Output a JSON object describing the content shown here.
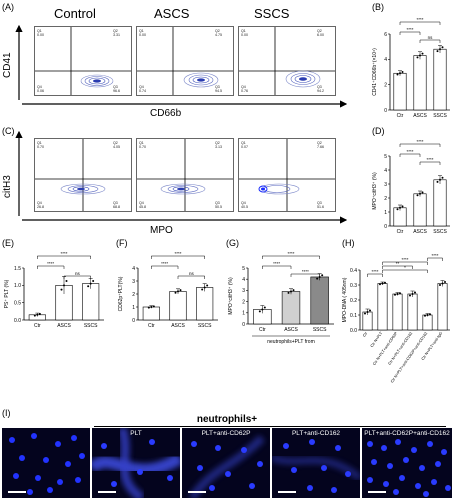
{
  "panel_labels": {
    "A": "(A)",
    "B": "(B)",
    "C": "(C)",
    "D": "(D)",
    "E": "(E)",
    "F": "(F)",
    "G": "(G)",
    "H": "(H)",
    "I": "(I)"
  },
  "flow_columns": [
    "Control",
    "ASCS",
    "SSCS"
  ],
  "row_a": {
    "y_label": "CD41",
    "x_label": "CD66b",
    "plots": [
      {
        "q1": "Q1\n0.00",
        "q2": "Q2\n3.31",
        "q3": "Q3\n96.6",
        "q4": "Q4\n0.06"
      },
      {
        "q1": "Q1\n0.00",
        "q2": "Q2\n4.75",
        "q3": "Q3\n94.5",
        "q4": "Q4\n0.74"
      },
      {
        "q1": "Q1\n0.00",
        "q2": "Q2\n6.00",
        "q3": "Q3\n94.2",
        "q4": "Q4\n0.76"
      }
    ]
  },
  "row_c": {
    "y_label": "citH3",
    "x_label": "MPO",
    "plots": [
      {
        "q1": "Q1\n0.70",
        "q2": "Q2\n4.05",
        "q3": "Q3\n68.8",
        "q4": "Q4\n26.8"
      },
      {
        "q1": "Q1\n0.70",
        "q2": "Q2\n3.13",
        "q3": "Q3\n50.5",
        "q4": "Q4\n45.8"
      },
      {
        "q1": "Q1\n0.07",
        "q2": "Q2\n7.66",
        "q3": "Q3\n51.6",
        "q4": "Q4\n40.5"
      }
    ]
  },
  "chart_data": [
    {
      "panel": "B",
      "type": "bar",
      "categories": [
        "Ctr",
        "ASCS",
        "SSCS"
      ],
      "values": [
        2.9,
        4.3,
        4.8
      ],
      "errors": [
        0.2,
        0.3,
        0.3
      ],
      "ylabel": "CD41⁺CD66b⁺(×10⁴)",
      "ylim": [
        0,
        6
      ],
      "yticks": [
        "0",
        "2",
        "4",
        "6"
      ],
      "significance": [
        "****",
        "****",
        "ns"
      ],
      "bar_colors": [
        "#ffffff",
        "#ffffff",
        "#ffffff"
      ]
    },
    {
      "panel": "D",
      "type": "bar",
      "categories": [
        "Ctr",
        "ASCS",
        "SSCS"
      ],
      "values": [
        1.3,
        2.3,
        3.3
      ],
      "errors": [
        0.2,
        0.2,
        0.3
      ],
      "ylabel": "MPO⁺citH3⁺ (%)",
      "ylim": [
        0,
        5
      ],
      "yticks": [
        "0",
        "1",
        "2",
        "3",
        "4",
        "5"
      ],
      "significance": [
        "****",
        "****",
        "****"
      ],
      "bar_colors": [
        "#ffffff",
        "#ffffff",
        "#ffffff"
      ]
    },
    {
      "panel": "E",
      "type": "bar",
      "categories": [
        "Ctr",
        "ASCS",
        "SSCS"
      ],
      "values": [
        0.15,
        1.0,
        1.05
      ],
      "errors": [
        0.05,
        0.25,
        0.15
      ],
      "ylabel": "PS⁺ PLT (%)",
      "ylim": [
        0,
        1.5
      ],
      "yticks": [
        "0.0",
        "0.5",
        "1.0",
        "1.5"
      ],
      "significance": [
        "****",
        "****",
        "ns"
      ],
      "bar_colors": [
        "#ffffff",
        "#ffffff",
        "#ffffff"
      ]
    },
    {
      "panel": "F",
      "type": "bar",
      "categories": [
        "Ctr",
        "ASCS",
        "SSCS"
      ],
      "values": [
        1.0,
        2.2,
        2.5
      ],
      "errors": [
        0.1,
        0.2,
        0.3
      ],
      "ylabel": "CD62p⁺PLT(%)",
      "ylim": [
        0,
        4
      ],
      "yticks": [
        "0",
        "1",
        "2",
        "3",
        "4"
      ],
      "significance": [
        "****",
        "****",
        "ns"
      ],
      "bar_colors": [
        "#ffffff",
        "#ffffff",
        "#ffffff"
      ]
    },
    {
      "panel": "G",
      "type": "bar",
      "categories": [
        "Ctr",
        "ASCS",
        "SSCS"
      ],
      "values": [
        1.3,
        2.9,
        4.2
      ],
      "errors": [
        0.35,
        0.25,
        0.3
      ],
      "ylabel": "MPO⁺citH3⁺ (%)",
      "ylim": [
        0,
        5
      ],
      "yticks": [
        "0",
        "1",
        "2",
        "3",
        "4",
        "5"
      ],
      "significance": [
        "****",
        "****",
        "****"
      ],
      "xlabel": "neutrophils+PLT from",
      "bar_colors": [
        "#ffffff",
        "#d0d0d0",
        "#8a8a8a"
      ]
    },
    {
      "panel": "H",
      "type": "bar",
      "categories": [
        "Ctr",
        "Ctr N+PLT",
        "Ctr N+PLT+anti-CD62P",
        "Ctr N+PLT+anti-CD162",
        "Ctr N+PLT+anti-CD62P+anti-CD162",
        "Ctr N+PLT+anti-IgG"
      ],
      "values": [
        0.12,
        0.31,
        0.24,
        0.24,
        0.1,
        0.31
      ],
      "errors": [
        0.02,
        0.01,
        0.01,
        0.02,
        0.01,
        0.02
      ],
      "ylabel": "MPO-DNA ( 405nm)",
      "ylim": [
        0,
        0.4
      ],
      "yticks": [
        "0.0",
        "0.1",
        "0.2",
        "0.3",
        "0.4"
      ],
      "significance": [
        "****",
        "**",
        "*",
        "****",
        "****"
      ],
      "bar_colors": [
        "#ffffff",
        "#ffffff",
        "#ffffff",
        "#ffffff",
        "#ffffff",
        "#ffffff"
      ]
    }
  ],
  "micro": {
    "group_title": "neutrophils+",
    "captions": [
      "",
      "PLT",
      "PLT+anti-CD62P",
      "PLT+anti-CD162",
      "PLT+anti-CD62P+anti-CD162"
    ]
  }
}
